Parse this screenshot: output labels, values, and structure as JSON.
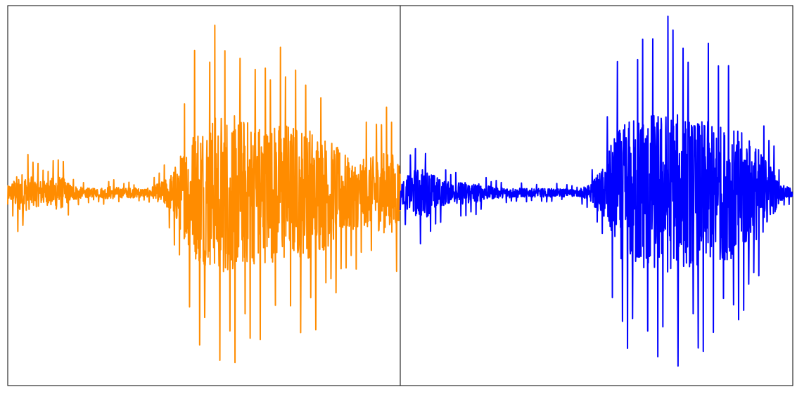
{
  "chart_data": [
    {
      "type": "line",
      "series": [
        {
          "color": "#ff8c00",
          "values": [
            0.08,
            0.25,
            0.18,
            0.14,
            0.22,
            0.1,
            0.06,
            0.05,
            0.08,
            0.06,
            0.06,
            0.05,
            0.12,
            0.25,
            0.58,
            0.85,
            0.9,
            0.98,
            0.92,
            0.88,
            0.84,
            0.83,
            0.86,
            0.8,
            0.78,
            0.7,
            0.55,
            0.45,
            0.4,
            0.44,
            0.5,
            0.42
          ],
          "duration_points": 1400
        }
      ],
      "ylim": [
        -1,
        1
      ],
      "grid": false,
      "axes_visible": false
    },
    {
      "type": "line",
      "series": [
        {
          "color": "#0000ff",
          "values": [
            0.1,
            0.28,
            0.3,
            0.18,
            0.12,
            0.14,
            0.12,
            0.08,
            0.06,
            0.06,
            0.05,
            0.05,
            0.05,
            0.05,
            0.04,
            0.1,
            0.3,
            0.72,
            0.88,
            0.95,
            0.96,
            0.98,
            0.94,
            0.88,
            0.86,
            0.82,
            0.8,
            0.72,
            0.6,
            0.42,
            0.1,
            0.05
          ],
          "duration_points": 1400
        }
      ],
      "ylim": [
        -1,
        1
      ],
      "grid": false,
      "axes_visible": false
    }
  ]
}
